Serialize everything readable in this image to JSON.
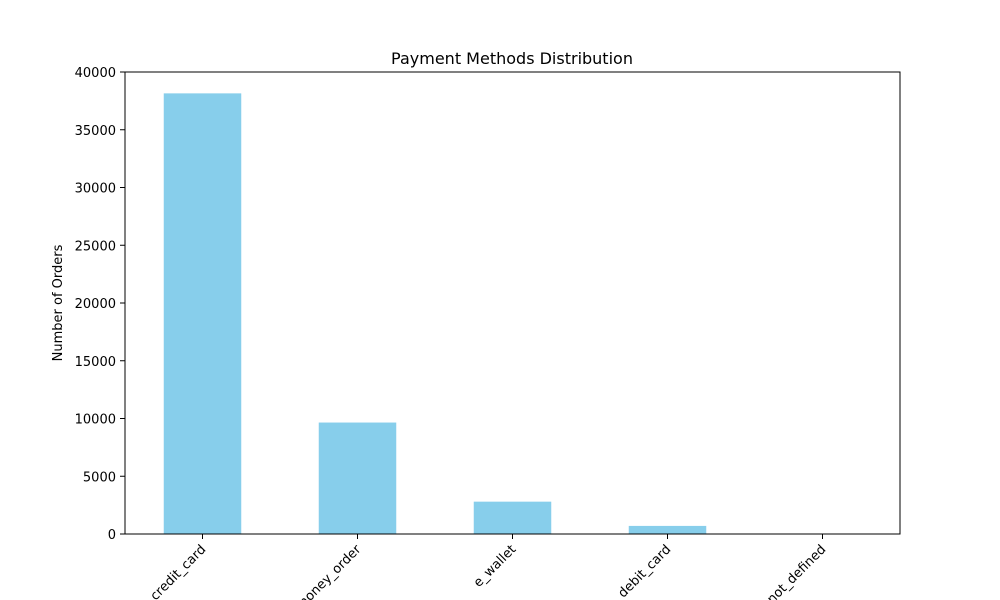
{
  "chart_data": {
    "type": "bar",
    "title": "Payment Methods Distribution",
    "xlabel": "",
    "ylabel": "Number of Orders",
    "categories": [
      "credit_card",
      "money_order",
      "e_wallet",
      "debit_card",
      "not_defined"
    ],
    "values": [
      38150,
      9650,
      2800,
      700,
      3
    ],
    "ylim": [
      0,
      40000
    ],
    "yticks": [
      0,
      5000,
      10000,
      15000,
      20000,
      25000,
      30000,
      35000,
      40000
    ],
    "grid": false,
    "legend": "none",
    "bar_color": "#87ceeb"
  }
}
